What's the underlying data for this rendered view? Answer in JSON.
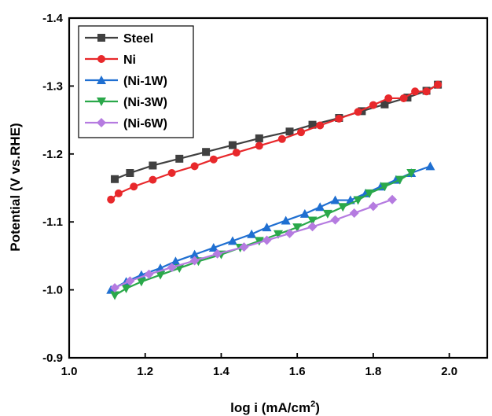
{
  "chart_data": {
    "type": "line",
    "title": "",
    "xlabel": "log i (mA/cm",
    "xlabel_sup": "2",
    "xlabel_end": ")",
    "ylabel": "Potential (V vs.RHE)",
    "xlim": [
      1.0,
      2.1
    ],
    "ylim": [
      -0.9,
      -1.4
    ],
    "x_ticks": [
      "1.0",
      "1.2",
      "1.4",
      "1.6",
      "1.8",
      "2.0"
    ],
    "y_ticks": [
      "-0.9",
      "-1.0",
      "-1.1",
      "-1.2",
      "-1.3",
      "-1.4"
    ],
    "grid": false,
    "legend_position": "top-left",
    "series": [
      {
        "name": "Steel",
        "color": "#404040",
        "marker": "square",
        "x": [
          1.12,
          1.16,
          1.22,
          1.29,
          1.36,
          1.43,
          1.5,
          1.58,
          1.64,
          1.71,
          1.77,
          1.83,
          1.89,
          1.94,
          1.97
        ],
        "y": [
          -1.163,
          -1.172,
          -1.183,
          -1.193,
          -1.203,
          -1.213,
          -1.223,
          -1.233,
          -1.243,
          -1.253,
          -1.263,
          -1.273,
          -1.283,
          -1.293,
          -1.302
        ]
      },
      {
        "name": "Ni",
        "color": "#e8282b",
        "marker": "circle",
        "x": [
          1.11,
          1.13,
          1.17,
          1.22,
          1.27,
          1.33,
          1.38,
          1.44,
          1.5,
          1.56,
          1.61,
          1.66,
          1.71,
          1.76,
          1.8,
          1.84,
          1.88,
          1.91,
          1.94,
          1.97
        ],
        "y": [
          -1.133,
          -1.142,
          -1.152,
          -1.162,
          -1.172,
          -1.182,
          -1.192,
          -1.202,
          -1.212,
          -1.222,
          -1.232,
          -1.242,
          -1.252,
          -1.262,
          -1.272,
          -1.282,
          -1.282,
          -1.292,
          -1.292,
          -1.302
        ]
      },
      {
        "name": "(Ni-1W)",
        "color": "#1f6fd1",
        "marker": "triangle-up",
        "x": [
          1.11,
          1.15,
          1.19,
          1.24,
          1.28,
          1.33,
          1.38,
          1.43,
          1.48,
          1.52,
          1.57,
          1.62,
          1.66,
          1.7,
          1.74,
          1.78,
          1.82,
          1.86,
          1.9,
          1.95
        ],
        "y": [
          -1.0,
          -1.012,
          -1.022,
          -1.032,
          -1.042,
          -1.052,
          -1.062,
          -1.072,
          -1.082,
          -1.092,
          -1.102,
          -1.112,
          -1.122,
          -1.132,
          -1.132,
          -1.142,
          -1.152,
          -1.162,
          -1.172,
          -1.182
        ]
      },
      {
        "name": "(Ni-3W)",
        "color": "#2aa84a",
        "marker": "triangle-down",
        "x": [
          1.12,
          1.15,
          1.19,
          1.24,
          1.29,
          1.34,
          1.4,
          1.45,
          1.5,
          1.55,
          1.6,
          1.64,
          1.68,
          1.72,
          1.76,
          1.79,
          1.83,
          1.87,
          1.9
        ],
        "y": [
          -0.992,
          -1.002,
          -1.012,
          -1.022,
          -1.032,
          -1.042,
          -1.052,
          -1.062,
          -1.072,
          -1.082,
          -1.092,
          -1.102,
          -1.112,
          -1.122,
          -1.132,
          -1.142,
          -1.152,
          -1.162,
          -1.172
        ]
      },
      {
        "name": "(Ni-6W)",
        "color": "#b57be0",
        "marker": "diamond",
        "x": [
          1.12,
          1.16,
          1.21,
          1.27,
          1.33,
          1.39,
          1.46,
          1.52,
          1.58,
          1.64,
          1.7,
          1.75,
          1.8,
          1.85
        ],
        "y": [
          -1.003,
          -1.013,
          -1.023,
          -1.033,
          -1.043,
          -1.053,
          -1.063,
          -1.073,
          -1.083,
          -1.093,
          -1.103,
          -1.113,
          -1.123,
          -1.133
        ]
      }
    ]
  }
}
